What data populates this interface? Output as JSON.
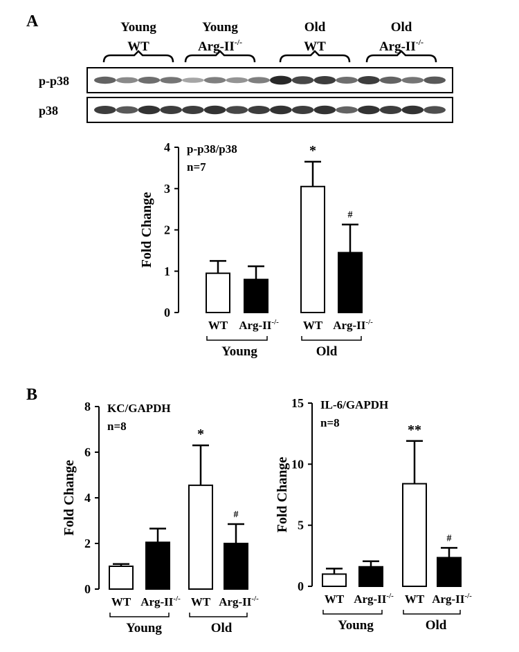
{
  "figure": {
    "panel_a_label": "A",
    "panel_b_label": "B"
  },
  "blot": {
    "groups": [
      {
        "line1": "Young",
        "line2": "WT",
        "sup": ""
      },
      {
        "line1": "Young",
        "line2": "Arg-II",
        "sup": "-/-"
      },
      {
        "line1": "Old",
        "line2": "WT",
        "sup": ""
      },
      {
        "line1": "Old",
        "line2": "Arg-II",
        "sup": "-/-"
      }
    ],
    "rows": [
      {
        "label": "p-p38",
        "intensities": [
          0.55,
          0.35,
          0.5,
          0.45,
          0.2,
          0.4,
          0.3,
          0.4,
          0.85,
          0.7,
          0.75,
          0.5,
          0.75,
          0.55,
          0.45,
          0.6
        ]
      },
      {
        "label": "p38",
        "intensities": [
          0.75,
          0.6,
          0.8,
          0.75,
          0.75,
          0.8,
          0.7,
          0.75,
          0.8,
          0.75,
          0.8,
          0.55,
          0.8,
          0.75,
          0.8,
          0.65
        ]
      }
    ]
  },
  "chart_data": [
    {
      "type": "bar",
      "panel": "A",
      "title": "p-p38/p38",
      "subtitle": "n=7",
      "ylabel": "Fold Change",
      "ylim": [
        0,
        4
      ],
      "yticks": [
        0,
        1,
        2,
        3,
        4
      ],
      "categories": [
        "WT",
        "Arg-II",
        "WT",
        "Arg-II"
      ],
      "category_sup": [
        "",
        "-/-",
        "",
        "-/-"
      ],
      "groups": [
        "Young",
        "Old"
      ],
      "fills": [
        "#ffffff",
        "#000000",
        "#ffffff",
        "#000000"
      ],
      "values": [
        0.95,
        0.8,
        3.05,
        1.45
      ],
      "errors": [
        0.3,
        0.32,
        0.6,
        0.68
      ],
      "annotations": [
        "",
        "",
        "*",
        "#"
      ]
    },
    {
      "type": "bar",
      "panel": "B-left",
      "title": "KC/GAPDH",
      "subtitle": "n=8",
      "ylabel": "Fold Change",
      "ylim": [
        0,
        8
      ],
      "yticks": [
        0,
        2,
        4,
        6,
        8
      ],
      "categories": [
        "WT",
        "Arg-II",
        "WT",
        "Arg-II"
      ],
      "category_sup": [
        "",
        "-/-",
        "",
        "-/-"
      ],
      "groups": [
        "Young",
        "Old"
      ],
      "fills": [
        "#ffffff",
        "#000000",
        "#ffffff",
        "#000000"
      ],
      "values": [
        1.0,
        2.05,
        4.55,
        2.0
      ],
      "errors": [
        0.1,
        0.6,
        1.75,
        0.85
      ],
      "annotations": [
        "",
        "",
        "*",
        "#"
      ]
    },
    {
      "type": "bar",
      "panel": "B-right",
      "title": "IL-6/GAPDH",
      "subtitle": "n=8",
      "ylabel": "Fold Change",
      "ylim": [
        0,
        15
      ],
      "yticks": [
        0,
        5,
        10,
        15
      ],
      "categories": [
        "WT",
        "Arg-II",
        "WT",
        "Arg-II"
      ],
      "category_sup": [
        "",
        "-/-",
        "",
        "-/-"
      ],
      "groups": [
        "Young",
        "Old"
      ],
      "fills": [
        "#ffffff",
        "#000000",
        "#ffffff",
        "#000000"
      ],
      "values": [
        1.0,
        1.6,
        8.4,
        2.35
      ],
      "errors": [
        0.45,
        0.45,
        3.5,
        0.8
      ],
      "annotations": [
        "",
        "",
        "**",
        "#"
      ]
    }
  ]
}
